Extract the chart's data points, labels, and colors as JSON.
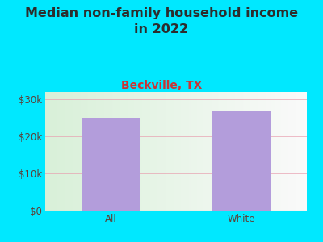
{
  "title": "Median non-family household income\nin 2022",
  "subtitle": "Beckville, TX",
  "categories": [
    "All",
    "White"
  ],
  "values": [
    25000,
    27000
  ],
  "bar_color": "#b39ddb",
  "background_color": "#00e8ff",
  "title_color": "#2d2d2d",
  "subtitle_color": "#cc3333",
  "tick_label_color": "#5d4037",
  "ylim": [
    0,
    32000
  ],
  "yticks": [
    0,
    10000,
    20000,
    30000
  ],
  "ytick_labels": [
    "$0",
    "$10k",
    "$20k",
    "$30k"
  ],
  "grid_color": "#e8a0b0",
  "title_fontsize": 11.5,
  "subtitle_fontsize": 10,
  "tick_fontsize": 8.5
}
